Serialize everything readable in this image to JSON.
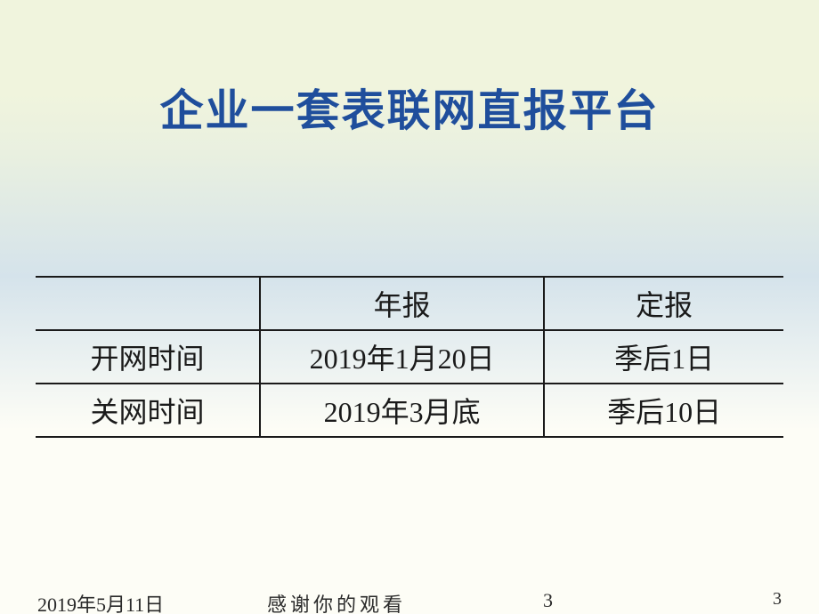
{
  "slide": {
    "title": "企业一套表联网直报平台",
    "title_color": "#1f4e9c",
    "title_fontsize": 49,
    "background_gradient": [
      "#f0f4dd",
      "#d5e3eb",
      "#fdfdf6"
    ]
  },
  "table": {
    "type": "table",
    "border_color": "#1a1a1a",
    "cell_fontsize": 32,
    "text_color": "#1a1a1a",
    "columns": [
      "",
      "年报",
      "定报"
    ],
    "column_widths_pct": [
      30,
      38,
      32
    ],
    "rows": [
      [
        "开网时间",
        "2019年1月20日",
        "季后1日"
      ],
      [
        "关网时间",
        "2019年3月底",
        "季后10日"
      ]
    ]
  },
  "footer": {
    "date": "2019年5月11日",
    "thanks": "感谢你的观看",
    "page_center": "3",
    "page_right": "3",
    "fontsize": 22,
    "text_color": "#2a2a2a"
  }
}
